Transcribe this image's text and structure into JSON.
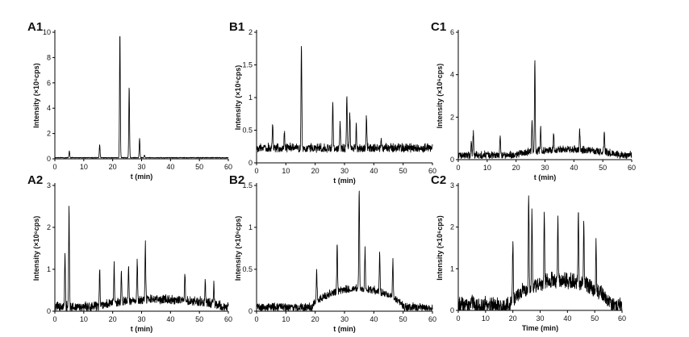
{
  "chart_data": [
    {
      "type": "line",
      "panel": "A1",
      "xlabel": "t (min)",
      "ylabel": "Intensity (×10⁶cps)",
      "xlim": [
        0,
        60
      ],
      "ylim": [
        0,
        10
      ],
      "xticks": [
        0,
        10,
        20,
        30,
        40,
        50,
        60
      ],
      "yticks": [
        0,
        2,
        4,
        6,
        8,
        10
      ],
      "baseline": 0.08,
      "noise": 0.03,
      "band": [],
      "peaks": [
        [
          5,
          0.6
        ],
        [
          15.5,
          1.1
        ],
        [
          22.5,
          10
        ],
        [
          25.7,
          5.7
        ],
        [
          29.3,
          1.6
        ],
        [
          31,
          0.3
        ]
      ]
    },
    {
      "type": "line",
      "panel": "B1",
      "xlabel": "t (min)",
      "ylabel": "Intensity (×10⁶cps)",
      "xlim": [
        0,
        60
      ],
      "ylim": [
        0,
        2
      ],
      "xticks": [
        0,
        10,
        20,
        30,
        40,
        50,
        60
      ],
      "yticks": [
        0,
        0.5,
        1,
        1.5,
        2
      ],
      "baseline": 0.2,
      "noise": 0.07,
      "band": [],
      "peaks": [
        [
          5.5,
          0.6
        ],
        [
          9.5,
          0.45
        ],
        [
          15.3,
          1.83
        ],
        [
          26,
          0.9
        ],
        [
          28.5,
          0.6
        ],
        [
          30.8,
          1.04
        ],
        [
          31.8,
          0.75
        ],
        [
          34,
          0.55
        ],
        [
          37.5,
          0.7
        ],
        [
          42.5,
          0.3
        ]
      ]
    },
    {
      "type": "line",
      "panel": "C1",
      "xlabel": "t (min)",
      "ylabel": "Intensity (×10⁶cps)",
      "xlim": [
        0,
        60
      ],
      "ylim": [
        0,
        6
      ],
      "xticks": [
        0,
        10,
        20,
        30,
        40,
        50,
        60
      ],
      "yticks": [
        0,
        2,
        4,
        6
      ],
      "baseline": 0.15,
      "noise": 0.18,
      "band": [
        [
          20,
          55,
          0.25
        ]
      ],
      "peaks": [
        [
          4.5,
          0.9
        ],
        [
          5.2,
          1.25
        ],
        [
          14.5,
          1.1
        ],
        [
          25.5,
          1.6
        ],
        [
          26.5,
          4.5
        ],
        [
          28.5,
          1.2
        ],
        [
          33,
          1
        ],
        [
          42,
          1.05
        ],
        [
          50.5,
          1.2
        ]
      ]
    },
    {
      "type": "line",
      "panel": "A2",
      "xlabel": "t (min)",
      "ylabel": "Intensity (×10⁶cps)",
      "xlim": [
        0,
        60
      ],
      "ylim": [
        0,
        3
      ],
      "xticks": [
        0,
        10,
        20,
        30,
        40,
        50,
        60
      ],
      "yticks": [
        0,
        1,
        2,
        3
      ],
      "baseline": 0.06,
      "noise": 0.12,
      "band": [
        [
          15,
          58,
          0.18
        ]
      ],
      "peaks": [
        [
          3.5,
          1.35
        ],
        [
          4.9,
          2.4
        ],
        [
          15.5,
          0.9
        ],
        [
          20.5,
          1
        ],
        [
          23,
          0.8
        ],
        [
          25.5,
          0.9
        ],
        [
          28.5,
          1
        ],
        [
          31.3,
          1.38
        ],
        [
          45,
          0.7
        ],
        [
          52,
          0.6
        ],
        [
          55,
          0.55
        ]
      ]
    },
    {
      "type": "line",
      "panel": "B2",
      "xlabel": "t (min)",
      "ylabel": "Intensity (×10⁶cps)",
      "xlim": [
        0,
        60
      ],
      "ylim": [
        0,
        1.5
      ],
      "xticks": [
        0,
        10,
        20,
        30,
        40,
        50,
        60
      ],
      "yticks": [
        0,
        0.5,
        1,
        1.5
      ],
      "baseline": 0.03,
      "noise": 0.05,
      "band": [
        [
          19,
          50,
          0.22
        ]
      ],
      "peaks": [
        [
          20.5,
          0.4
        ],
        [
          27.5,
          0.57
        ],
        [
          35,
          1.25
        ],
        [
          37,
          0.5
        ],
        [
          42,
          0.5
        ],
        [
          46.5,
          0.47
        ]
      ]
    },
    {
      "type": "line",
      "panel": "C2",
      "xlabel": "Time (min)",
      "ylabel": "Intensity (×10⁶cps)",
      "xlim": [
        0,
        60
      ],
      "ylim": [
        0,
        3
      ],
      "xticks": [
        0,
        10,
        20,
        30,
        40,
        50,
        60
      ],
      "yticks": [
        0,
        1,
        2,
        3
      ],
      "baseline": 0.04,
      "noise": 0.2,
      "band": [
        [
          19,
          56,
          0.6
        ]
      ],
      "peaks": [
        [
          5,
          0.3
        ],
        [
          10,
          0.25
        ],
        [
          20,
          1.45
        ],
        [
          25.8,
          2.35
        ],
        [
          27,
          1.9
        ],
        [
          31.5,
          1.9
        ],
        [
          36.5,
          1.5
        ],
        [
          44,
          1.75
        ],
        [
          46,
          1.5
        ],
        [
          50.5,
          1.2
        ]
      ]
    }
  ]
}
